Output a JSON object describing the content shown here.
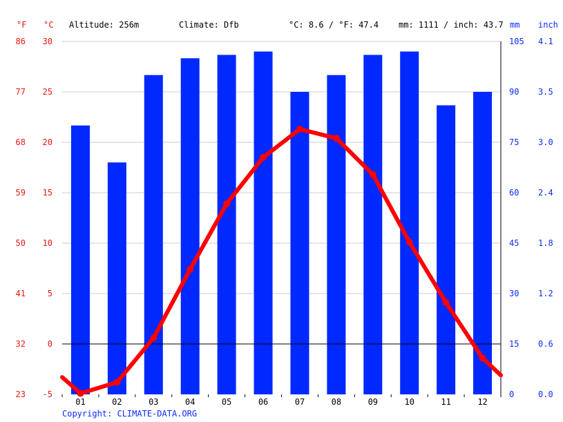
{
  "header": {
    "fahrenheit_unit": "°F",
    "celsius_unit": "°C",
    "altitude": "Altitude: 256m",
    "climate": "Climate: Dfb",
    "temp_summary": "°C: 8.6 / °F: 47.4",
    "precip_summary": "mm: 1111 / inch: 43.7",
    "mm_unit": "mm",
    "inch_unit": "inch"
  },
  "copyright": "Copyright: CLIMATE-DATA.ORG",
  "colors": {
    "precip_bars": "#0028ff",
    "temperature_line": "#ff0000",
    "left_axis_labels": "#e8180c",
    "right_axis_labels": "#0a2bff",
    "gridlines": "#cccccc"
  },
  "chart_data": {
    "type": "bar+line",
    "categories": [
      "01",
      "02",
      "03",
      "04",
      "05",
      "06",
      "07",
      "08",
      "09",
      "10",
      "11",
      "12"
    ],
    "precipitation_mm": [
      80,
      69,
      95,
      100,
      101,
      102,
      90,
      95,
      101,
      102,
      86,
      90
    ],
    "temperature_c": [
      -4.9,
      -3.8,
      0.6,
      7.4,
      13.9,
      18.5,
      21.3,
      20.4,
      16.8,
      10.1,
      4.1,
      -1.4
    ],
    "temperature_line_ends_c": [
      -3.3,
      -3.1
    ],
    "celsius_axis": {
      "range": [
        -5,
        30
      ],
      "ticks": [
        "30",
        "25",
        "20",
        "15",
        "10",
        "5",
        "0",
        "-5"
      ]
    },
    "fahrenheit_axis": {
      "ticks": [
        "86",
        "77",
        "68",
        "59",
        "50",
        "41",
        "32",
        "23"
      ]
    },
    "mm_axis": {
      "range": [
        0,
        105
      ],
      "ticks": [
        "105",
        "90",
        "75",
        "60",
        "45",
        "30",
        "15",
        "0"
      ]
    },
    "inch_axis": {
      "ticks": [
        "4.1",
        "3.5",
        "3.0",
        "2.4",
        "1.8",
        "1.2",
        "0.6",
        "0.0"
      ]
    },
    "grid": true,
    "zero_line": true
  }
}
